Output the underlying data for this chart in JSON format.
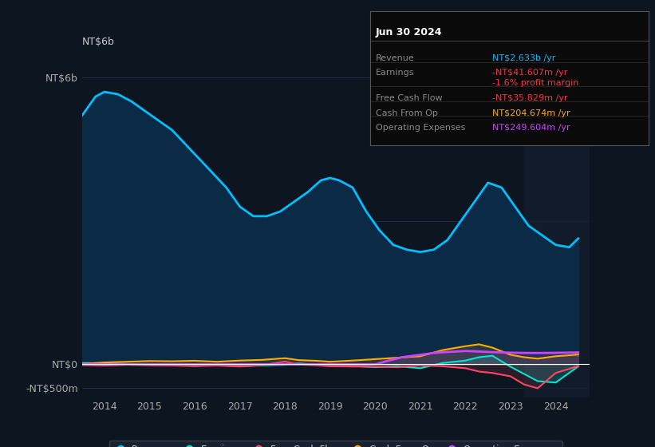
{
  "bg_color": "#0d1520",
  "plot_bg_color": "#0d1520",
  "ylabel_text": "NT$6b",
  "ytick_labels": [
    "NT$6b",
    "",
    "NT$0",
    "-NT$500m"
  ],
  "ytick_values": [
    6000,
    3000,
    0,
    -500
  ],
  "ylim": [
    -700,
    6500
  ],
  "xlim": [
    2013.5,
    2024.75
  ],
  "xtick_years": [
    2014,
    2015,
    2016,
    2017,
    2018,
    2019,
    2020,
    2021,
    2022,
    2023,
    2024
  ],
  "grid_color": "#1e2e40",
  "zero_line_color": "#ffffff",
  "revenue_color": "#00bfff",
  "revenue_fill_color": "#0a2a45",
  "earnings_color": "#00e5cc",
  "fcf_color": "#ff4466",
  "cashfromop_color": "#ffaa00",
  "opex_color": "#cc44ff",
  "revenue_data": {
    "x": [
      2013.5,
      2013.8,
      2014.0,
      2014.3,
      2014.6,
      2014.9,
      2015.2,
      2015.5,
      2015.8,
      2016.1,
      2016.4,
      2016.7,
      2017.0,
      2017.3,
      2017.6,
      2017.9,
      2018.2,
      2018.5,
      2018.8,
      2019.0,
      2019.2,
      2019.5,
      2019.8,
      2020.1,
      2020.4,
      2020.7,
      2021.0,
      2021.3,
      2021.6,
      2021.9,
      2022.2,
      2022.5,
      2022.8,
      2023.1,
      2023.4,
      2023.7,
      2024.0,
      2024.3,
      2024.5
    ],
    "y": [
      5200,
      5600,
      5700,
      5650,
      5500,
      5300,
      5100,
      4900,
      4600,
      4300,
      4000,
      3700,
      3300,
      3100,
      3100,
      3200,
      3400,
      3600,
      3850,
      3900,
      3850,
      3700,
      3200,
      2800,
      2500,
      2400,
      2350,
      2400,
      2600,
      3000,
      3400,
      3800,
      3700,
      3300,
      2900,
      2700,
      2500,
      2450,
      2633
    ]
  },
  "earnings_data": {
    "x": [
      2013.5,
      2014.0,
      2014.5,
      2015.0,
      2015.5,
      2016.0,
      2016.5,
      2017.0,
      2017.5,
      2018.0,
      2018.3,
      2018.7,
      2019.0,
      2019.5,
      2020.0,
      2020.5,
      2021.0,
      2021.5,
      2022.0,
      2022.3,
      2022.6,
      2023.0,
      2023.3,
      2023.6,
      2024.0,
      2024.5
    ],
    "y": [
      30,
      20,
      10,
      -10,
      -20,
      -30,
      -15,
      -40,
      -20,
      -10,
      20,
      -10,
      -20,
      -30,
      -60,
      -40,
      -80,
      30,
      80,
      150,
      180,
      -50,
      -200,
      -350,
      -380,
      -42
    ]
  },
  "fcf_data": {
    "x": [
      2013.5,
      2014.0,
      2014.5,
      2015.0,
      2015.5,
      2016.0,
      2016.5,
      2017.0,
      2017.5,
      2018.0,
      2018.3,
      2018.7,
      2019.0,
      2019.5,
      2020.0,
      2020.5,
      2021.0,
      2021.5,
      2022.0,
      2022.3,
      2022.6,
      2023.0,
      2023.3,
      2023.6,
      2024.0,
      2024.5
    ],
    "y": [
      -15,
      -25,
      -10,
      -20,
      -25,
      -35,
      -25,
      -45,
      -15,
      60,
      -5,
      -20,
      -40,
      -45,
      -50,
      -60,
      -20,
      -40,
      -80,
      -150,
      -180,
      -250,
      -420,
      -500,
      -180,
      -36
    ]
  },
  "cashfromop_data": {
    "x": [
      2013.5,
      2014.0,
      2014.5,
      2015.0,
      2015.5,
      2016.0,
      2016.5,
      2017.0,
      2017.5,
      2018.0,
      2018.3,
      2018.7,
      2019.0,
      2019.5,
      2020.0,
      2020.5,
      2021.0,
      2021.5,
      2022.0,
      2022.3,
      2022.6,
      2023.0,
      2023.3,
      2023.6,
      2024.0,
      2024.5
    ],
    "y": [
      10,
      40,
      55,
      70,
      65,
      75,
      55,
      80,
      95,
      130,
      90,
      75,
      55,
      80,
      110,
      140,
      170,
      300,
      380,
      420,
      350,
      200,
      150,
      120,
      170,
      205
    ]
  },
  "opex_data": {
    "x": [
      2013.5,
      2014.0,
      2014.5,
      2015.0,
      2015.5,
      2016.0,
      2016.5,
      2017.0,
      2017.5,
      2018.0,
      2018.3,
      2018.7,
      2019.0,
      2019.5,
      2020.0,
      2020.3,
      2020.6,
      2021.0,
      2021.3,
      2021.6,
      2022.0,
      2022.3,
      2022.6,
      2023.0,
      2023.3,
      2023.6,
      2024.0,
      2024.5
    ],
    "y": [
      0,
      0,
      0,
      0,
      0,
      0,
      0,
      0,
      0,
      0,
      0,
      0,
      0,
      0,
      0,
      80,
      150,
      200,
      240,
      260,
      280,
      270,
      255,
      245,
      240,
      238,
      242,
      250
    ]
  },
  "legend_items": [
    {
      "label": "Revenue",
      "color": "#00bfff"
    },
    {
      "label": "Earnings",
      "color": "#00e5cc"
    },
    {
      "label": "Free Cash Flow",
      "color": "#ff4466"
    },
    {
      "label": "Cash From Op",
      "color": "#ffaa00"
    },
    {
      "label": "Operating Expenses",
      "color": "#cc44ff"
    }
  ],
  "tooltip": {
    "date": "Jun 30 2024",
    "rows": [
      {
        "label": "Revenue",
        "value": "NT$2.633b /yr",
        "value_color": "#00bfff"
      },
      {
        "label": "Earnings",
        "value": "-NT$41.607m /yr",
        "value_color": "#ff3333"
      },
      {
        "label": "",
        "value": "-1.6% profit margin",
        "value_color": "#ff3333"
      },
      {
        "label": "Free Cash Flow",
        "value": "-NT$35.829m /yr",
        "value_color": "#ff3333"
      },
      {
        "label": "Cash From Op",
        "value": "NT$204.674m /yr",
        "value_color": "#ffaa00"
      },
      {
        "label": "Operating Expenses",
        "value": "NT$249.604m /yr",
        "value_color": "#cc44ff"
      }
    ]
  },
  "shaded_right_start": 2023.3,
  "shaded_right_color": "#131e2e"
}
